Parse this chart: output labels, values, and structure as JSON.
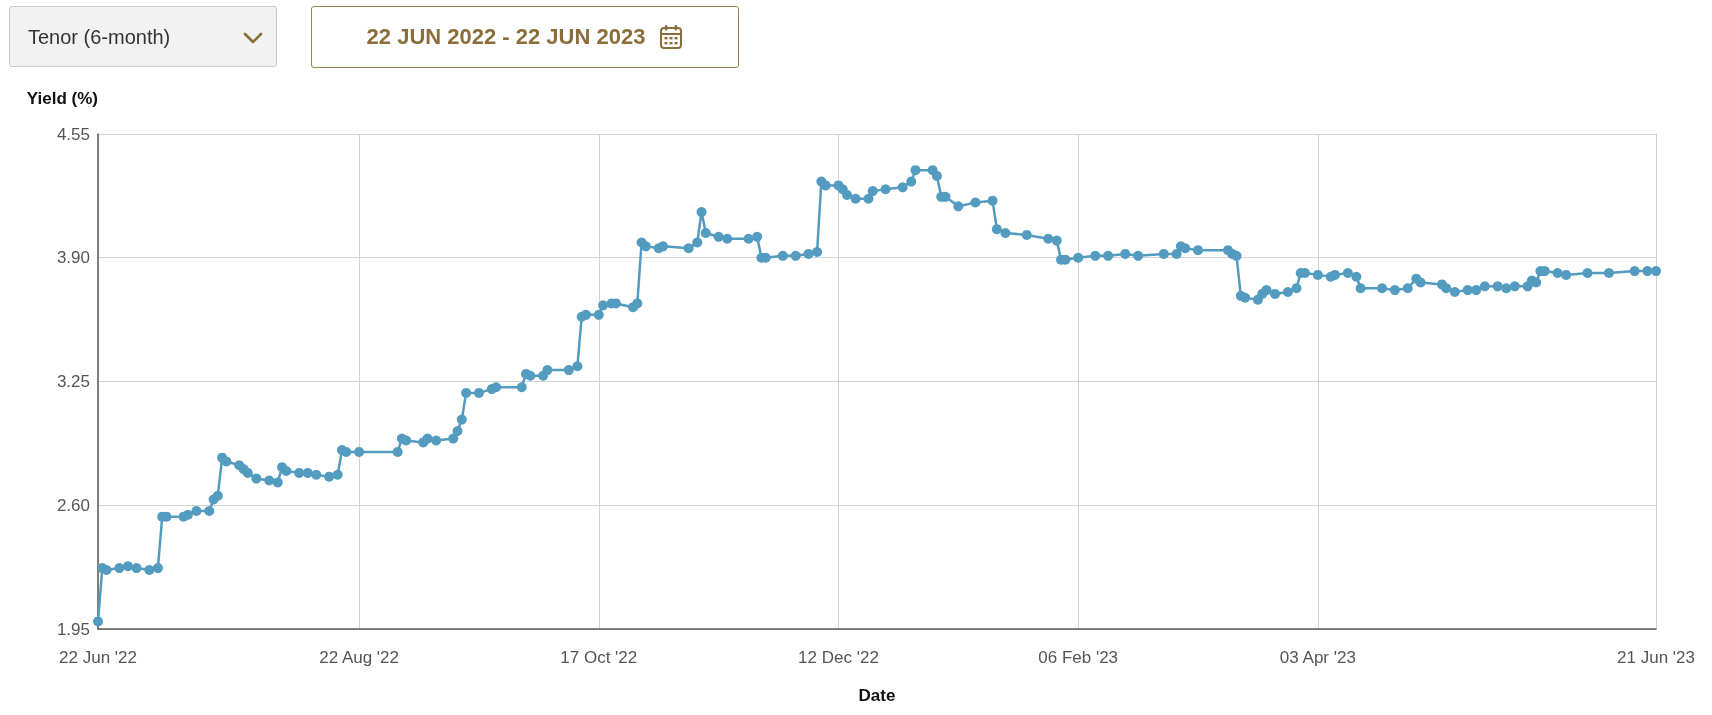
{
  "chart_data": {
    "type": "line",
    "title": "Tenor (6-month)",
    "subtitle": "22 JUN 2022 - 22 JUN 2023",
    "xlabel": "Date",
    "ylabel": "Yield (%)",
    "x": [
      "2022-06-22",
      "2022-06-23",
      "2022-06-24",
      "2022-06-27",
      "2022-06-29",
      "2022-07-01",
      "2022-07-04",
      "2022-07-06",
      "2022-07-07",
      "2022-07-08",
      "2022-07-12",
      "2022-07-13",
      "2022-07-15",
      "2022-07-18",
      "2022-07-19",
      "2022-07-20",
      "2022-07-21",
      "2022-07-22",
      "2022-07-25",
      "2022-07-26",
      "2022-07-27",
      "2022-07-29",
      "2022-08-01",
      "2022-08-03",
      "2022-08-04",
      "2022-08-05",
      "2022-08-08",
      "2022-08-10",
      "2022-08-12",
      "2022-08-15",
      "2022-08-17",
      "2022-08-18",
      "2022-08-19",
      "2022-08-22",
      "2022-08-31",
      "2022-09-01",
      "2022-09-02",
      "2022-09-06",
      "2022-09-07",
      "2022-09-09",
      "2022-09-13",
      "2022-09-14",
      "2022-09-15",
      "2022-09-16",
      "2022-09-19",
      "2022-09-22",
      "2022-09-23",
      "2022-09-29",
      "2022-09-30",
      "2022-10-01",
      "2022-10-04",
      "2022-10-05",
      "2022-10-10",
      "2022-10-12",
      "2022-10-13",
      "2022-10-14",
      "2022-10-17",
      "2022-10-18",
      "2022-10-20",
      "2022-10-21",
      "2022-10-25",
      "2022-10-26",
      "2022-10-27",
      "2022-10-28",
      "2022-10-31",
      "2022-11-01",
      "2022-11-07",
      "2022-11-09",
      "2022-11-10",
      "2022-11-11",
      "2022-11-14",
      "2022-11-16",
      "2022-11-21",
      "2022-11-23",
      "2022-11-24",
      "2022-11-25",
      "2022-11-29",
      "2022-12-02",
      "2022-12-05",
      "2022-12-07",
      "2022-12-08",
      "2022-12-09",
      "2022-12-12",
      "2022-12-13",
      "2022-12-14",
      "2022-12-16",
      "2022-12-19",
      "2022-12-20",
      "2022-12-23",
      "2022-12-27",
      "2022-12-29",
      "2022-12-30",
      "2023-01-03",
      "2023-01-04",
      "2023-01-05",
      "2023-01-06",
      "2023-01-09",
      "2023-01-13",
      "2023-01-17",
      "2023-01-18",
      "2023-01-20",
      "2023-01-25",
      "2023-01-30",
      "2023-02-01",
      "2023-02-02",
      "2023-02-03",
      "2023-02-06",
      "2023-02-10",
      "2023-02-13",
      "2023-02-17",
      "2023-02-20",
      "2023-02-26",
      "2023-03-01",
      "2023-03-02",
      "2023-03-03",
      "2023-03-06",
      "2023-03-13",
      "2023-03-14",
      "2023-03-15",
      "2023-03-16",
      "2023-03-17",
      "2023-03-20",
      "2023-03-21",
      "2023-03-22",
      "2023-03-24",
      "2023-03-27",
      "2023-03-29",
      "2023-03-30",
      "2023-03-31",
      "2023-04-03",
      "2023-04-06",
      "2023-04-07",
      "2023-04-10",
      "2023-04-12",
      "2023-04-13",
      "2023-04-18",
      "2023-04-21",
      "2023-04-24",
      "2023-04-26",
      "2023-04-27",
      "2023-05-02",
      "2023-05-03",
      "2023-05-05",
      "2023-05-08",
      "2023-05-10",
      "2023-05-12",
      "2023-05-15",
      "2023-05-17",
      "2023-05-19",
      "2023-05-22",
      "2023-05-23",
      "2023-05-24",
      "2023-05-25",
      "2023-05-26",
      "2023-05-29",
      "2023-05-31",
      "2023-06-05",
      "2023-06-10",
      "2023-06-16",
      "2023-06-19",
      "2023-06-21"
    ],
    "values": [
      1.99,
      2.27,
      2.26,
      2.27,
      2.28,
      2.27,
      2.26,
      2.27,
      2.54,
      2.54,
      2.54,
      2.55,
      2.57,
      2.57,
      2.63,
      2.65,
      2.85,
      2.83,
      2.81,
      2.79,
      2.77,
      2.74,
      2.73,
      2.72,
      2.8,
      2.78,
      2.77,
      2.77,
      2.76,
      2.75,
      2.76,
      2.89,
      2.88,
      2.88,
      2.88,
      2.95,
      2.94,
      2.93,
      2.95,
      2.94,
      2.95,
      2.99,
      3.05,
      3.19,
      3.19,
      3.21,
      3.22,
      3.22,
      3.29,
      3.28,
      3.28,
      3.31,
      3.31,
      3.33,
      3.59,
      3.6,
      3.6,
      3.65,
      3.66,
      3.66,
      3.64,
      3.66,
      3.98,
      3.96,
      3.95,
      3.96,
      3.95,
      3.98,
      4.14,
      4.03,
      4.01,
      4.0,
      4.0,
      4.01,
      3.9,
      3.9,
      3.91,
      3.91,
      3.92,
      3.93,
      4.3,
      4.28,
      4.28,
      4.26,
      4.23,
      4.21,
      4.21,
      4.25,
      4.26,
      4.27,
      4.3,
      4.36,
      4.36,
      4.33,
      4.22,
      4.22,
      4.17,
      4.19,
      4.2,
      4.05,
      4.03,
      4.02,
      4.0,
      3.99,
      3.89,
      3.89,
      3.9,
      3.91,
      3.91,
      3.92,
      3.91,
      3.92,
      3.92,
      3.96,
      3.95,
      3.94,
      3.94,
      3.92,
      3.91,
      3.7,
      3.69,
      3.68,
      3.71,
      3.73,
      3.71,
      3.72,
      3.74,
      3.82,
      3.82,
      3.81,
      3.8,
      3.81,
      3.82,
      3.8,
      3.74,
      3.74,
      3.73,
      3.74,
      3.79,
      3.77,
      3.76,
      3.74,
      3.72,
      3.73,
      3.73,
      3.75,
      3.75,
      3.74,
      3.75,
      3.75,
      3.78,
      3.77,
      3.83,
      3.83,
      3.82,
      3.81,
      3.82,
      3.82,
      3.83,
      3.83,
      3.83
    ],
    "color": "#539bbf",
    "xlim": [
      "2022-06-22",
      "2023-06-21"
    ],
    "xticks": [
      {
        "value": "2022-06-22",
        "label": "22 Jun '22"
      },
      {
        "value": "2022-08-22",
        "label": "22 Aug '22"
      },
      {
        "value": "2022-10-17",
        "label": "17 Oct '22"
      },
      {
        "value": "2022-12-12",
        "label": "12 Dec '22"
      },
      {
        "value": "2023-02-06",
        "label": "06 Feb '23"
      },
      {
        "value": "2023-04-03",
        "label": "03 Apr '23"
      },
      {
        "value": "2023-06-21",
        "label": "21 Jun '23"
      }
    ],
    "ylim": [
      1.95,
      4.55
    ],
    "yticks": [
      1.95,
      {
        "value": 2.6,
        "label": "2.60"
      },
      3.25,
      {
        "value": 3.9,
        "label": "3.90"
      },
      4.55
    ],
    "grid": true,
    "marker": "circle",
    "line_style": "solid"
  }
}
